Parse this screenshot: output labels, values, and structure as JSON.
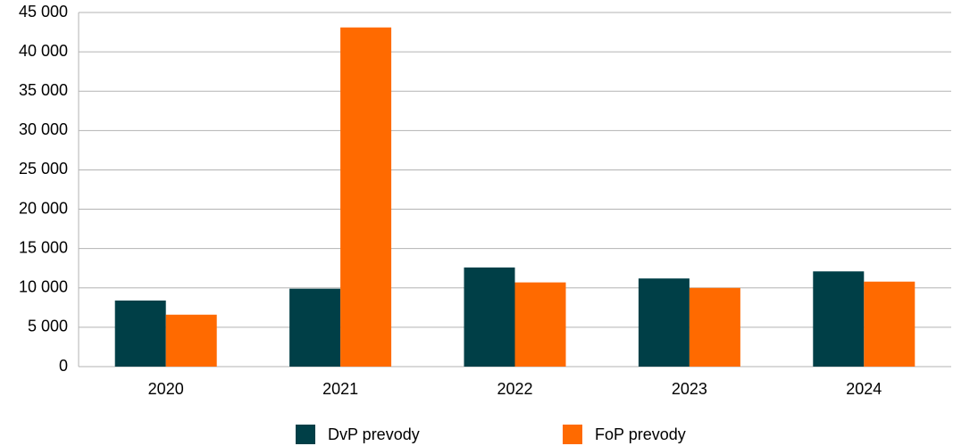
{
  "chart_data": {
    "type": "bar",
    "categories": [
      "2020",
      "2021",
      "2022",
      "2023",
      "2024"
    ],
    "series": [
      {
        "name": "DvP prevody",
        "color": "#003f47",
        "values": [
          8400,
          9900,
          12600,
          11200,
          12100
        ]
      },
      {
        "name": "FoP prevody",
        "color": "#ff6a00",
        "values": [
          6600,
          43100,
          10700,
          10000,
          10800
        ]
      }
    ],
    "ylim": [
      0,
      45000
    ],
    "yticks": [
      0,
      {
        "value": 5000,
        "label": "5 000"
      },
      {
        "value": 10000,
        "label": "10 000"
      },
      {
        "value": 15000,
        "label": "15 000"
      },
      {
        "value": 20000,
        "label": "20 000"
      },
      {
        "value": 25000,
        "label": "25 000"
      },
      {
        "value": 30000,
        "label": "30 000"
      },
      {
        "value": 35000,
        "label": "35 000"
      },
      {
        "value": 40000,
        "label": "40 000"
      },
      {
        "value": 45000,
        "label": "45 000"
      }
    ],
    "grid": true,
    "legend": "bottom"
  }
}
